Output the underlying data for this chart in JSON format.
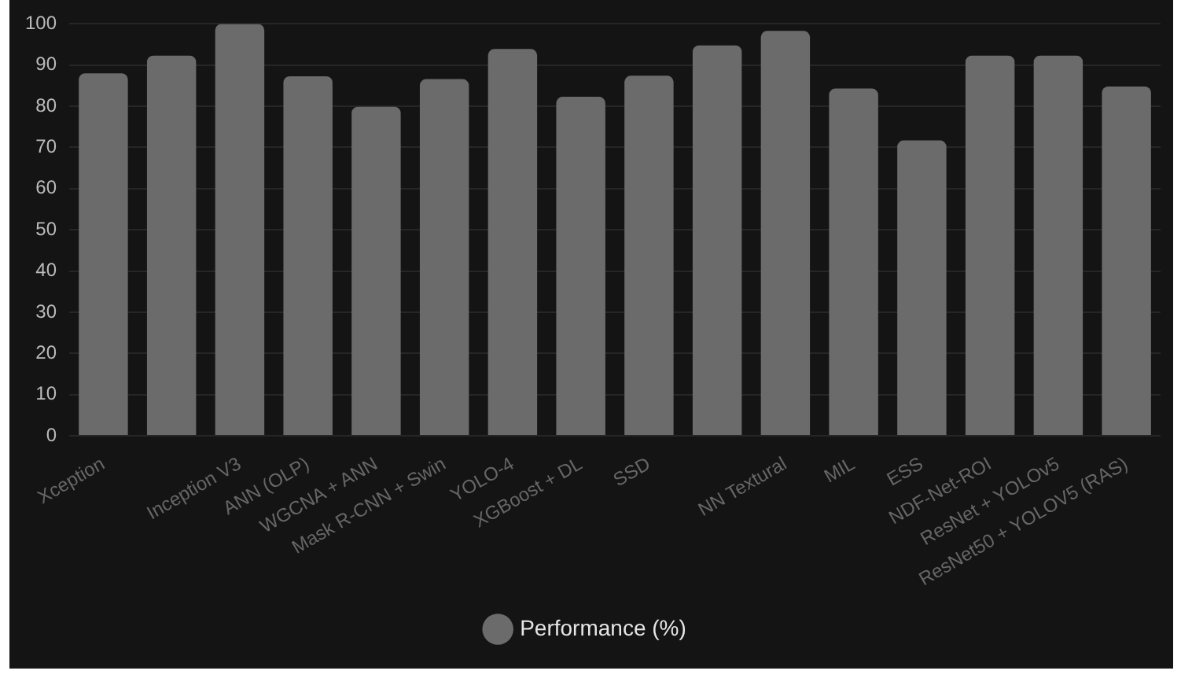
{
  "chart_data": {
    "type": "bar",
    "categories": [
      "Xception",
      null,
      "Inception V3",
      "ANN (OLP)",
      "WGCNA + ANN",
      "Mask R-CNN + Swin",
      "YOLO-4",
      "XGBoost + DL",
      "SSD",
      null,
      "NN Textural",
      "MIL",
      "ESS",
      "NDF-Net-ROI",
      "ResNet + YOLOv5",
      "ResNet50 + YOLOV5 (RAS)"
    ],
    "series": [
      {
        "name": "Performance (%)",
        "color": "#6b6b6b",
        "values": [
          88,
          92.3,
          100,
          87.3,
          79.9,
          86.6,
          93.9,
          82.3,
          87.4,
          94.8,
          98.3,
          84.3,
          71.7,
          92.3,
          92.3,
          84.8
        ]
      }
    ],
    "ylim": [
      0,
      100
    ],
    "yticks": [
      0,
      10,
      20,
      30,
      40,
      50,
      60,
      70,
      80,
      90,
      100
    ],
    "grid": "y",
    "legend": "bottom"
  }
}
